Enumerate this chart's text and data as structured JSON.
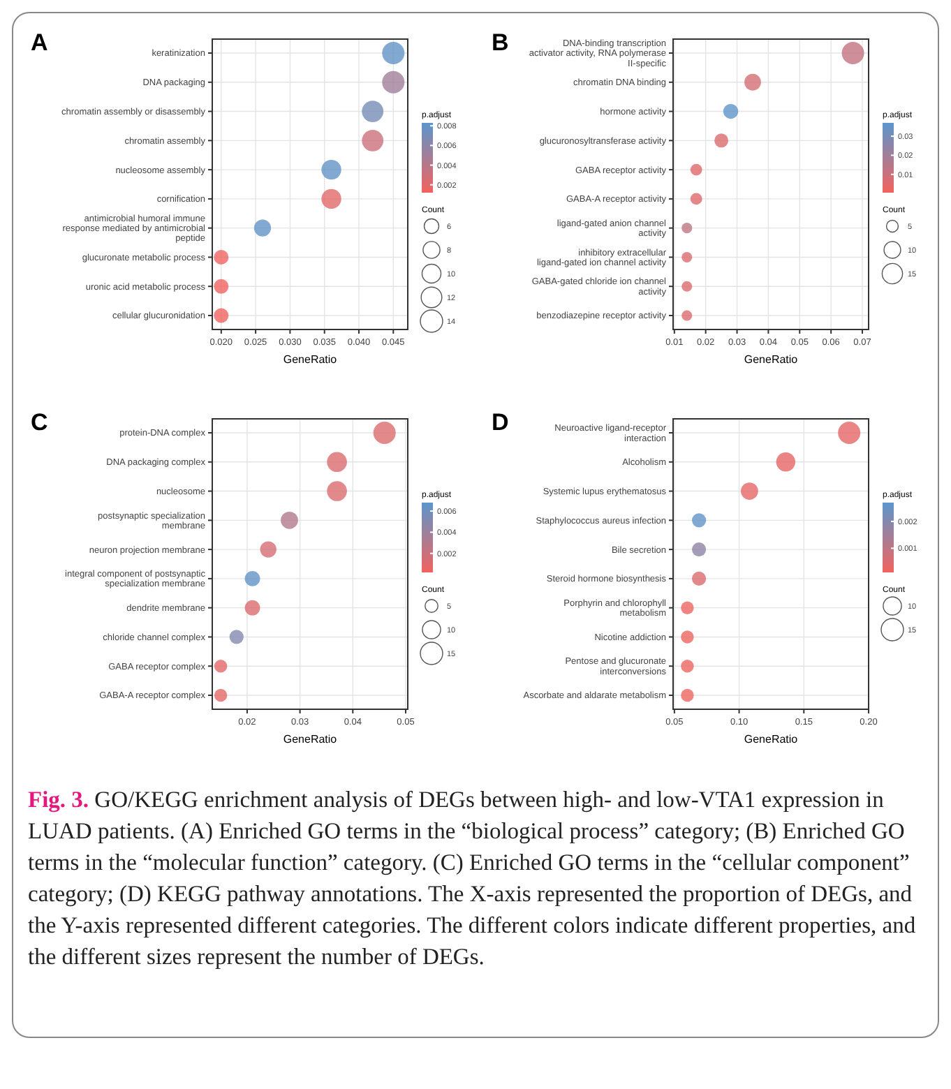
{
  "chart_data": [
    {
      "type": "bubble",
      "title": "A",
      "orientation": "horizontal",
      "xlabel": "GeneRatio",
      "clabel": "p.adjust",
      "legend_title": "Count",
      "grid": true,
      "categories": [
        "keratinization",
        "DNA packaging",
        "chromatin assembly or disassembly",
        "chromatin assembly",
        "nucleosome assembly",
        "cornification",
        "antimicrobial humoral immune response mediated by antimicrobial peptide",
        "glucuronate metabolic process",
        "uronic acid metabolic process",
        "cellular glucuronidation"
      ],
      "values": [
        0.045,
        0.045,
        0.042,
        0.042,
        0.036,
        0.036,
        0.026,
        0.02,
        0.02,
        0.02
      ],
      "sizes": [
        14,
        14,
        13,
        13,
        11,
        11,
        8,
        6,
        6,
        6
      ],
      "cvalues": [
        0.008,
        0.005,
        0.007,
        0.003,
        0.008,
        0.002,
        0.008,
        0.0013,
        0.0013,
        0.0013
      ],
      "size_legend": [
        6,
        8,
        10,
        12,
        14
      ],
      "clim": [
        0.0012,
        0.0083
      ],
      "cticks": [
        0.002,
        0.004,
        0.006,
        0.008
      ],
      "xlim": [
        0.0187,
        0.0471
      ],
      "xticks": [
        {
          "value": 0.02,
          "label": "0.020"
        },
        {
          "value": 0.025,
          "label": "0.025"
        },
        {
          "value": 0.03,
          "label": "0.030"
        },
        {
          "value": 0.035,
          "label": "0.035"
        },
        {
          "value": 0.04,
          "label": "0.040"
        },
        {
          "value": 0.045,
          "label": "0.045"
        }
      ]
    },
    {
      "type": "bubble",
      "title": "B",
      "orientation": "horizontal",
      "xlabel": "GeneRatio",
      "clabel": "p.adjust",
      "legend_title": "Count",
      "grid": true,
      "categories": [
        "DNA-binding transcription activator activity, RNA polymerase II-specific",
        "chromatin DNA binding",
        "hormone activity",
        "glucuronosyltransferase activity",
        "GABA receptor activity",
        "GABA-A receptor activity",
        "ligand-gated anion channel activity",
        "inhibitory extracellular ligand-gated ion channel activity",
        "GABA-gated chloride ion channel activity",
        "benzodiazepine receptor activity"
      ],
      "values": [
        0.067,
        0.035,
        0.028,
        0.025,
        0.017,
        0.017,
        0.014,
        0.014,
        0.014,
        0.014
      ],
      "sizes": [
        18,
        10,
        8,
        7,
        5,
        5,
        4,
        4,
        4,
        4
      ],
      "cvalues": [
        0.012,
        0.008,
        0.036,
        0.006,
        0.005,
        0.005,
        0.013,
        0.006,
        0.006,
        0.006
      ],
      "size_legend": [
        5,
        10,
        15
      ],
      "clim": [
        0.0004,
        0.037
      ],
      "cticks": [
        0.01,
        0.02,
        0.03
      ],
      "xlim": [
        0.0096,
        0.072
      ],
      "xticks": [
        0.01,
        0.02,
        0.03,
        0.04,
        0.05,
        0.06,
        0.07
      ]
    },
    {
      "type": "bubble",
      "title": "C",
      "orientation": "horizontal",
      "xlabel": "GeneRatio",
      "clabel": "p.adjust",
      "legend_title": "Count",
      "grid": true,
      "categories": [
        "protein-DNA complex",
        "DNA packaging complex",
        "nucleosome",
        "postsynaptic specialization membrane",
        "neuron projection membrane",
        "integral component of postsynaptic specialization membrane",
        "dendrite membrane",
        "chloride channel complex",
        "GABA receptor complex",
        "GABA-A receptor complex"
      ],
      "values": [
        0.046,
        0.037,
        0.037,
        0.028,
        0.024,
        0.021,
        0.021,
        0.018,
        0.015,
        0.015
      ],
      "sizes": [
        15,
        12,
        12,
        9,
        8,
        7,
        7,
        6,
        5,
        5
      ],
      "cvalues": [
        0.0012,
        0.0012,
        0.0012,
        0.003,
        0.0015,
        0.0065,
        0.0012,
        0.005,
        0.0008,
        0.0008
      ],
      "size_legend": [
        5,
        10,
        15
      ],
      "clim": [
        0.0002,
        0.0068
      ],
      "cticks": [
        0.002,
        0.004,
        0.006
      ],
      "xlim": [
        0.0134,
        0.0504
      ],
      "xticks": [
        0.02,
        0.03,
        0.04,
        0.05
      ]
    },
    {
      "type": "bubble",
      "title": "D",
      "orientation": "horizontal",
      "xlabel": "GeneRatio",
      "clabel": "p.adjust",
      "legend_title": "Count",
      "grid": true,
      "categories": [
        "Neuroactive ligand-receptor interaction",
        "Alcoholism",
        "Systemic lupus erythematosus",
        "Staphylococcus aureus infection",
        "Bile secretion",
        "Steroid hormone biosynthesis",
        "Porphyrin and chlorophyll metabolism",
        "Nicotine addiction",
        "Pentose and glucuronate interconversions",
        "Ascorbate and aldarate metabolism"
      ],
      "values": [
        0.185,
        0.136,
        0.108,
        0.069,
        0.069,
        0.069,
        0.06,
        0.06,
        0.06,
        0.06
      ],
      "sizes": [
        15,
        11,
        9,
        6,
        6,
        6,
        5,
        5,
        5,
        5
      ],
      "cvalues": [
        0.0003,
        0.0003,
        0.0003,
        0.0026,
        0.0018,
        0.0005,
        0.0002,
        0.0002,
        0.0002,
        0.0002
      ],
      "size_legend": [
        10,
        15
      ],
      "clim": [
        0.0001,
        0.0027
      ],
      "cticks": [
        0.001,
        0.002
      ],
      "xlim": [
        0.049,
        0.2
      ],
      "xticks": [
        {
          "value": 0.05,
          "label": "0.05"
        },
        {
          "value": 0.1,
          "label": "0.10"
        },
        {
          "value": 0.15,
          "label": "0.15"
        },
        {
          "value": 0.2,
          "label": "0.20"
        }
      ]
    },
    {
      "type": "other",
      "annotations": [
        "Fig. 3.",
        "GO/KEGG enrichment analysis of DEGs between high- and low-VTA1 expression in LUAD patients. (A) Enriched GO terms in the “biological process” category; (B) Enriched GO terms in the “molecular function” category. (C) Enriched GO terms in the “cellular component” category; (D) KEGG pathway annotations. The X-axis represented the proportion of DEGs, and the Y-axis represented different categories. The different colors indicate different properties, and the different sizes represent the number of DEGs."
      ]
    }
  ]
}
